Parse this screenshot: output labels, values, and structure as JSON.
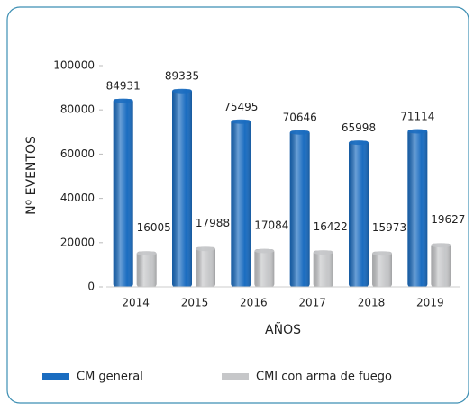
{
  "chart_data": {
    "type": "bar",
    "categories": [
      "2014",
      "2015",
      "2016",
      "2017",
      "2018",
      "2019"
    ],
    "series": [
      {
        "name": "CM general",
        "color": "#1a6cc0",
        "values": [
          84931,
          89335,
          75495,
          70646,
          65998,
          71114
        ]
      },
      {
        "name": "CMI con arma de fuego",
        "color": "#c6c7c9",
        "values": [
          16005,
          17988,
          17084,
          16422,
          15973,
          19627
        ]
      }
    ],
    "ylim": [
      0,
      100000
    ],
    "yticks": [
      0,
      20000,
      40000,
      60000,
      80000,
      100000
    ],
    "ylabel": "Nº EVENTOS",
    "xlabel": "AÑOS",
    "legend": "bottom"
  }
}
